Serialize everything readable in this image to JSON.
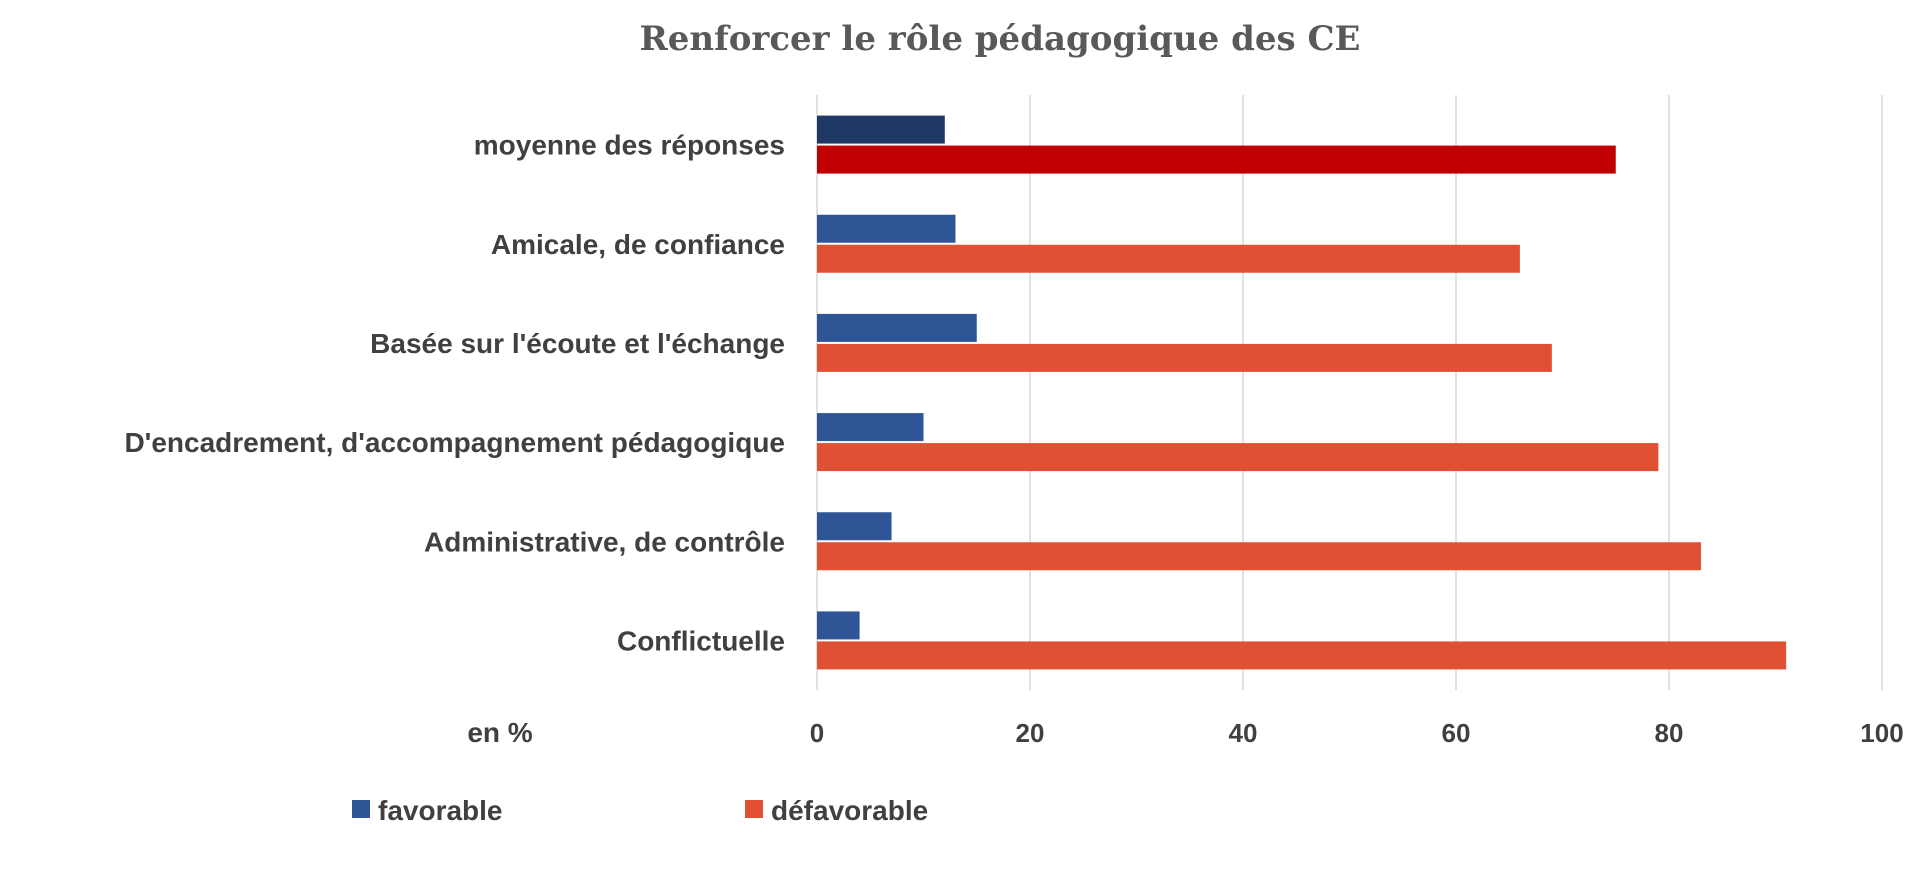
{
  "chart_data": {
    "type": "bar",
    "orientation": "horizontal",
    "title": "Renforcer le rôle pédagogique des CE",
    "unit_label": "en %",
    "categories": [
      "moyenne des réponses",
      "Amicale, de confiance",
      "Basée sur l'écoute et l'échange",
      "D'encadrement, d'accompagnement pédagogique",
      "Administrative, de contrôle",
      "Conflictuelle"
    ],
    "series": [
      {
        "name": "favorable",
        "color": "#2f5597",
        "highlight_color": "#1f3864",
        "values": [
          12,
          13,
          15,
          10,
          7,
          4
        ]
      },
      {
        "name": "défavorable",
        "color": "#e05033",
        "highlight_color": "#c00000",
        "values": [
          75,
          66,
          69,
          79,
          83,
          91
        ]
      }
    ],
    "highlight_category_index": 0,
    "xlim": [
      0,
      100
    ],
    "xticks": [
      0,
      20,
      40,
      60,
      80,
      100
    ],
    "grid": true,
    "legend_position": "bottom-left"
  }
}
